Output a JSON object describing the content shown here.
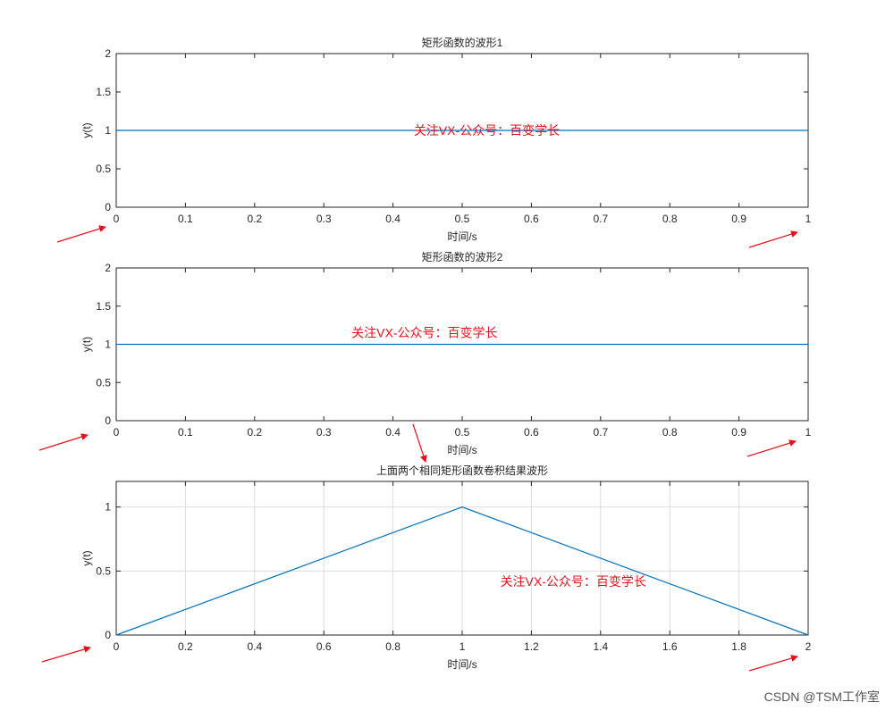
{
  "charts": [
    {
      "type": "line",
      "title": "矩形函数的波形1",
      "xlabel": "时间/s",
      "ylabel": "y(t)",
      "xlim": [
        0,
        1
      ],
      "ylim": [
        0,
        2
      ],
      "xticks": [
        "0",
        "0.1",
        "0.2",
        "0.3",
        "0.4",
        "0.5",
        "0.6",
        "0.7",
        "0.8",
        "0.9",
        "1"
      ],
      "yticks": [
        "0",
        "0.5",
        "1",
        "1.5",
        "2"
      ],
      "grid": false,
      "series": [
        {
          "x": [
            0,
            1
          ],
          "y": [
            1,
            1
          ],
          "color": "#0072bd"
        }
      ],
      "annotation": {
        "text": "关注VX-公众号：百变学长",
        "x": 0.43,
        "y": 1.0
      }
    },
    {
      "type": "line",
      "title": "矩形函数的波形2",
      "xlabel": "时间/s",
      "ylabel": "y(t)",
      "xlim": [
        0,
        1
      ],
      "ylim": [
        0,
        2
      ],
      "xticks": [
        "0",
        "0.1",
        "0.2",
        "0.3",
        "0.4",
        "0.5",
        "0.6",
        "0.7",
        "0.8",
        "0.9",
        "1"
      ],
      "yticks": [
        "0",
        "0.5",
        "1",
        "1.5",
        "2"
      ],
      "grid": false,
      "series": [
        {
          "x": [
            0,
            1
          ],
          "y": [
            1,
            1
          ],
          "color": "#0072bd"
        }
      ],
      "annotation": {
        "text": "关注VX-公众号：百变学长",
        "x": 0.34,
        "y": 1.15
      }
    },
    {
      "type": "line",
      "title": "上面两个相同矩形函数卷积结果波形",
      "xlabel": "时间/s",
      "ylabel": "y(t)",
      "xlim": [
        0,
        2
      ],
      "ylim": [
        0,
        1.2
      ],
      "xticks": [
        "0",
        "0.2",
        "0.4",
        "0.6",
        "0.8",
        "1",
        "1.2",
        "1.4",
        "1.6",
        "1.8",
        "2"
      ],
      "yticks": [
        "0",
        "0.5",
        "1"
      ],
      "grid": true,
      "series": [
        {
          "x": [
            0,
            1,
            2
          ],
          "y": [
            0,
            1,
            0
          ],
          "color": "#0072bd"
        }
      ],
      "annotation": {
        "text": "关注VX-公众号：百变学长",
        "x": 1.11,
        "y": 0.42
      }
    }
  ],
  "watermark": "CSDN @TSM工作室",
  "colors": {
    "line": "#0072bd",
    "annotation": "#e8101d",
    "arrow": "#e8101d",
    "axis": "#262626",
    "grid": "#dcdcdc"
  }
}
